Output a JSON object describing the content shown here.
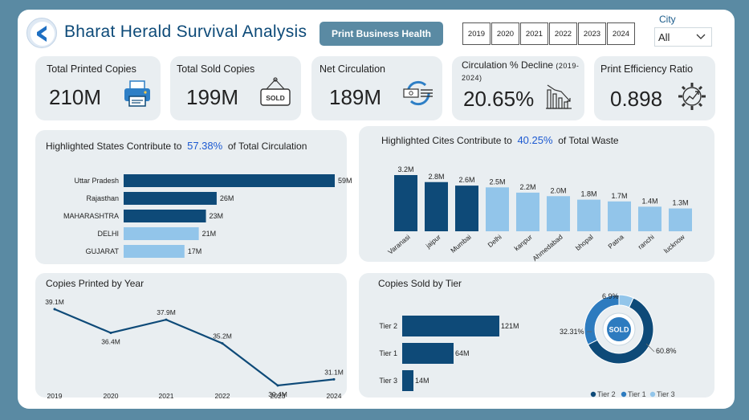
{
  "app": {
    "title": "Bharat Herald Survival Analysis"
  },
  "header": {
    "print_button": "Print Business Health",
    "years": [
      "2019",
      "2020",
      "2021",
      "2022",
      "2023",
      "2024"
    ],
    "city_label": "City",
    "city_value": "All"
  },
  "kpis": {
    "printed": {
      "label": "Total Printed Copies",
      "value": "210M",
      "icon": "printer-icon"
    },
    "sold": {
      "label": "Total Sold Copies",
      "value": "199M",
      "icon": "sold-sign-icon"
    },
    "net": {
      "label": "Net Circulation",
      "value": "189M",
      "icon": "circulation-icon"
    },
    "decline": {
      "label": "Circulation % Decline",
      "label_suffix": "(2019-2024)",
      "value": "20.65%",
      "icon": "declining-chart-icon"
    },
    "efficiency": {
      "label": "Print Efficiency Ratio",
      "value": "0.898",
      "icon": "growth-gear-icon"
    }
  },
  "colors": {
    "dark": "#0e4a78",
    "mid": "#2d7bbf",
    "light": "#92c5ea",
    "page_bg": "#5a8aa3",
    "card_bg": "#e9eef1"
  },
  "chart_data": [
    {
      "type": "bar",
      "orientation": "horizontal",
      "title_prefix": "Highlighted States Contribute to",
      "title_highlight": "57.38%",
      "title_suffix": "of Total Circulation",
      "categories": [
        "Uttar Pradesh",
        "Rajasthan",
        "MAHARASHTRA",
        "DELHI",
        "GUJARAT"
      ],
      "values": [
        59,
        26,
        23,
        21,
        17
      ],
      "labels": [
        "59M",
        "26M",
        "23M",
        "21M",
        "17M"
      ],
      "highlighted": [
        true,
        true,
        true,
        false,
        false
      ]
    },
    {
      "type": "bar",
      "title_prefix": "Highlighted Cites Contribute to",
      "title_highlight": "40.25%",
      "title_suffix": "of Total Waste",
      "categories": [
        "Varanasi",
        "jaipur",
        "Mumbai",
        "Delhi",
        "kanpur",
        "Ahmedabad",
        "bhopal",
        "Patna",
        "ranchi",
        "lucknow"
      ],
      "values": [
        3.2,
        2.8,
        2.6,
        2.5,
        2.2,
        2.0,
        1.8,
        1.7,
        1.4,
        1.3
      ],
      "labels": [
        "3.2M",
        "2.8M",
        "2.6M",
        "2.5M",
        "2.2M",
        "2.0M",
        "1.8M",
        "1.7M",
        "1.4M",
        "1.3M"
      ],
      "highlighted": [
        true,
        true,
        true,
        false,
        false,
        false,
        false,
        false,
        false,
        false
      ]
    },
    {
      "type": "line",
      "title": "Copies Printed by Year",
      "x": [
        "2019",
        "2020",
        "2021",
        "2022",
        "2023",
        "2024"
      ],
      "values": [
        39.1,
        36.4,
        37.9,
        35.2,
        30.4,
        31.1
      ],
      "labels": [
        "39.1M",
        "36.4M",
        "37.9M",
        "35.2M",
        "30.4M",
        "31.1M"
      ]
    },
    {
      "type": "bar",
      "orientation": "horizontal",
      "title": "Copies Sold by Tier",
      "categories": [
        "Tier 2",
        "Tier 1",
        "Tier 3"
      ],
      "values": [
        121,
        64,
        14
      ],
      "labels": [
        "121M",
        "64M",
        "14M"
      ]
    },
    {
      "type": "pie",
      "style": "donut",
      "center_label": "SOLD",
      "categories": [
        "Tier 2",
        "Tier 1",
        "Tier 3"
      ],
      "values": [
        60.8,
        32.31,
        6.9
      ],
      "labels": [
        "60.8%",
        "32.31%",
        "6.9%"
      ],
      "legend": [
        "Tier 2",
        "Tier 1",
        "Tier 3"
      ],
      "legend_position": "bottom"
    }
  ]
}
